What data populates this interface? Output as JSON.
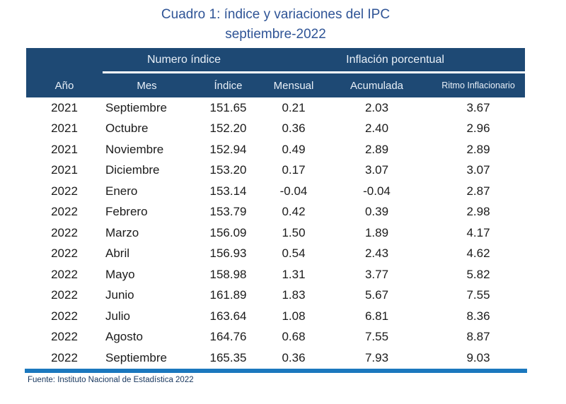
{
  "title": {
    "line1": "Cuadro 1: índice y variaciones del IPC",
    "line2": "septiembre-2022"
  },
  "table": {
    "group_headers": [
      {
        "label": "Numero índice"
      },
      {
        "label": "Inflación porcentual"
      }
    ],
    "columns": [
      "Año",
      "Mes",
      "Índice",
      "Mensual",
      "Acumulada",
      "Ritmo Inflacionario"
    ],
    "rows": [
      [
        "2021",
        "Septiembre",
        "151.65",
        "0.21",
        "2.03",
        "3.67"
      ],
      [
        "2021",
        "Octubre",
        "152.20",
        "0.36",
        "2.40",
        "2.96"
      ],
      [
        "2021",
        "Noviembre",
        "152.94",
        "0.49",
        "2.89",
        "2.89"
      ],
      [
        "2021",
        "Diciembre",
        "153.20",
        "0.17",
        "3.07",
        "3.07"
      ],
      [
        "2022",
        "Enero",
        "153.14",
        "-0.04",
        "-0.04",
        "2.87"
      ],
      [
        "2022",
        "Febrero",
        "153.79",
        "0.42",
        "0.39",
        "2.98"
      ],
      [
        "2022",
        "Marzo",
        "156.09",
        "1.50",
        "1.89",
        "4.17"
      ],
      [
        "2022",
        "Abril",
        "156.93",
        "0.54",
        "2.43",
        "4.62"
      ],
      [
        "2022",
        "Mayo",
        "158.98",
        "1.31",
        "3.77",
        "5.82"
      ],
      [
        "2022",
        "Junio",
        "161.89",
        "1.83",
        "5.67",
        "7.55"
      ],
      [
        "2022",
        "Julio",
        "163.64",
        "1.08",
        "6.81",
        "8.36"
      ],
      [
        "2022",
        "Agosto",
        "164.76",
        "0.68",
        "7.55",
        "8.87"
      ],
      [
        "2022",
        "Septiembre",
        "165.35",
        "0.36",
        "7.93",
        "9.03"
      ]
    ]
  },
  "footer": {
    "source": "Fuente: Instituto Nacional de Estadística 2022"
  },
  "colors": {
    "header_navy": "#1e4974",
    "title_blue": "#2f5496",
    "bottom_rule_blue": "#1b78be",
    "footer_navy": "#17365d"
  },
  "chart_data": {
    "type": "table",
    "title": "Cuadro 1: índice y variaciones del IPC septiembre-2022",
    "columns": [
      "Año",
      "Mes",
      "Índice",
      "Mensual",
      "Acumulada",
      "Ritmo Inflacionario"
    ],
    "rows": [
      [
        2021,
        "Septiembre",
        151.65,
        0.21,
        2.03,
        3.67
      ],
      [
        2021,
        "Octubre",
        152.2,
        0.36,
        2.4,
        2.96
      ],
      [
        2021,
        "Noviembre",
        152.94,
        0.49,
        2.89,
        2.89
      ],
      [
        2021,
        "Diciembre",
        153.2,
        0.17,
        3.07,
        3.07
      ],
      [
        2022,
        "Enero",
        153.14,
        -0.04,
        -0.04,
        2.87
      ],
      [
        2022,
        "Febrero",
        153.79,
        0.42,
        0.39,
        2.98
      ],
      [
        2022,
        "Marzo",
        156.09,
        1.5,
        1.89,
        4.17
      ],
      [
        2022,
        "Abril",
        156.93,
        0.54,
        2.43,
        4.62
      ],
      [
        2022,
        "Mayo",
        158.98,
        1.31,
        3.77,
        5.82
      ],
      [
        2022,
        "Junio",
        161.89,
        1.83,
        5.67,
        7.55
      ],
      [
        2022,
        "Julio",
        163.64,
        1.08,
        6.81,
        8.36
      ],
      [
        2022,
        "Agosto",
        164.76,
        0.68,
        7.55,
        8.87
      ],
      [
        2022,
        "Septiembre",
        165.35,
        0.36,
        7.93,
        9.03
      ]
    ]
  }
}
